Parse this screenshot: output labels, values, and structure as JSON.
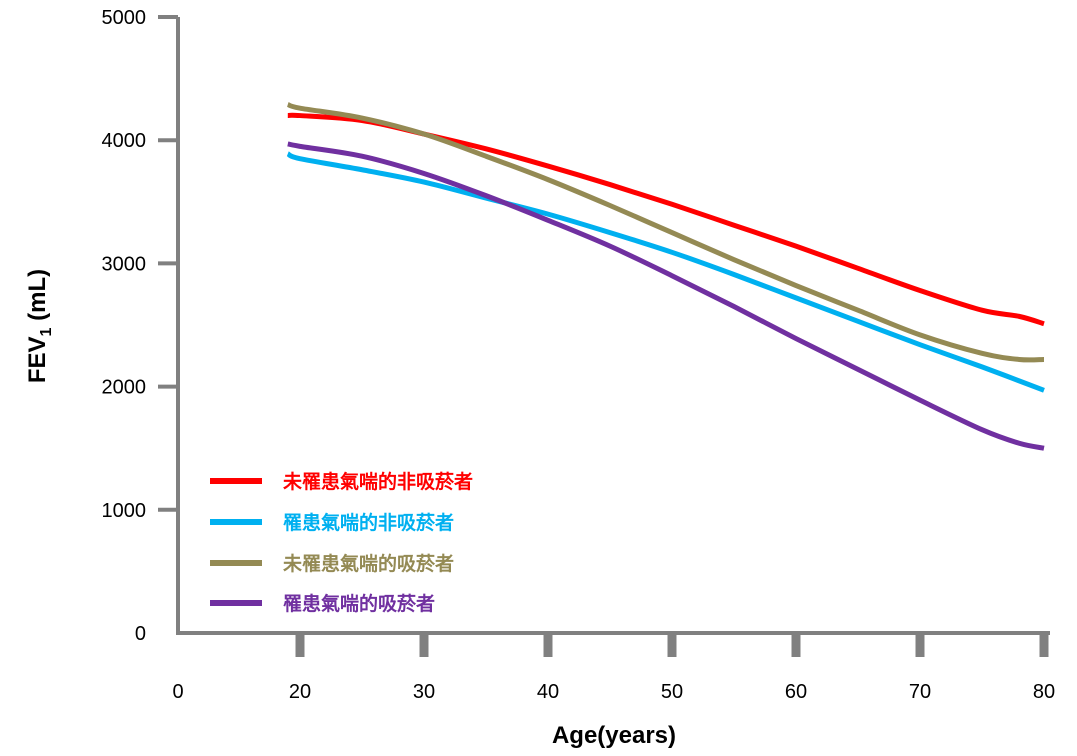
{
  "chart_data": {
    "type": "line",
    "title": "",
    "xlabel": "Age(years)",
    "ylabel_main": "FEV",
    "ylabel_sub": "1",
    "ylabel_unit": " (mL)",
    "xlim": [
      0,
      80
    ],
    "ylim": [
      0,
      5000
    ],
    "x_ticks": [
      0,
      20,
      30,
      40,
      50,
      60,
      70,
      80
    ],
    "y_ticks": [
      0,
      1000,
      2000,
      3000,
      4000,
      5000
    ],
    "legend_position": "bottom-left",
    "grid": false,
    "series": [
      {
        "name": "未罹患氣喘的非吸菸者",
        "color": "#ff0000",
        "x": [
          18,
          20,
          25,
          30,
          35,
          40,
          45,
          50,
          55,
          60,
          65,
          70,
          75,
          78,
          80
        ],
        "y": [
          4200,
          4200,
          4160,
          4050,
          3930,
          3790,
          3640,
          3480,
          3310,
          3140,
          2960,
          2780,
          2620,
          2570,
          2510
        ]
      },
      {
        "name": "罹患氣喘的非吸菸者",
        "color": "#00b0f0",
        "x": [
          18,
          20,
          25,
          30,
          35,
          40,
          45,
          50,
          55,
          60,
          65,
          70,
          75,
          80
        ],
        "y": [
          3890,
          3850,
          3760,
          3660,
          3530,
          3400,
          3250,
          3090,
          2910,
          2720,
          2530,
          2340,
          2160,
          1970
        ]
      },
      {
        "name": "未罹患氣喘的吸菸者",
        "color": "#948a54",
        "x": [
          18,
          20,
          25,
          30,
          35,
          40,
          45,
          50,
          55,
          60,
          65,
          70,
          75,
          78,
          80
        ],
        "y": [
          4290,
          4260,
          4180,
          4050,
          3870,
          3680,
          3470,
          3250,
          3030,
          2820,
          2620,
          2420,
          2270,
          2220,
          2220
        ]
      },
      {
        "name": "罹患氣喘的吸菸者",
        "color": "#7030a0",
        "x": [
          18,
          20,
          25,
          30,
          35,
          40,
          45,
          50,
          55,
          60,
          65,
          70,
          75,
          78,
          80
        ],
        "y": [
          3970,
          3950,
          3870,
          3730,
          3550,
          3350,
          3140,
          2900,
          2650,
          2390,
          2140,
          1890,
          1650,
          1540,
          1500
        ]
      }
    ]
  }
}
